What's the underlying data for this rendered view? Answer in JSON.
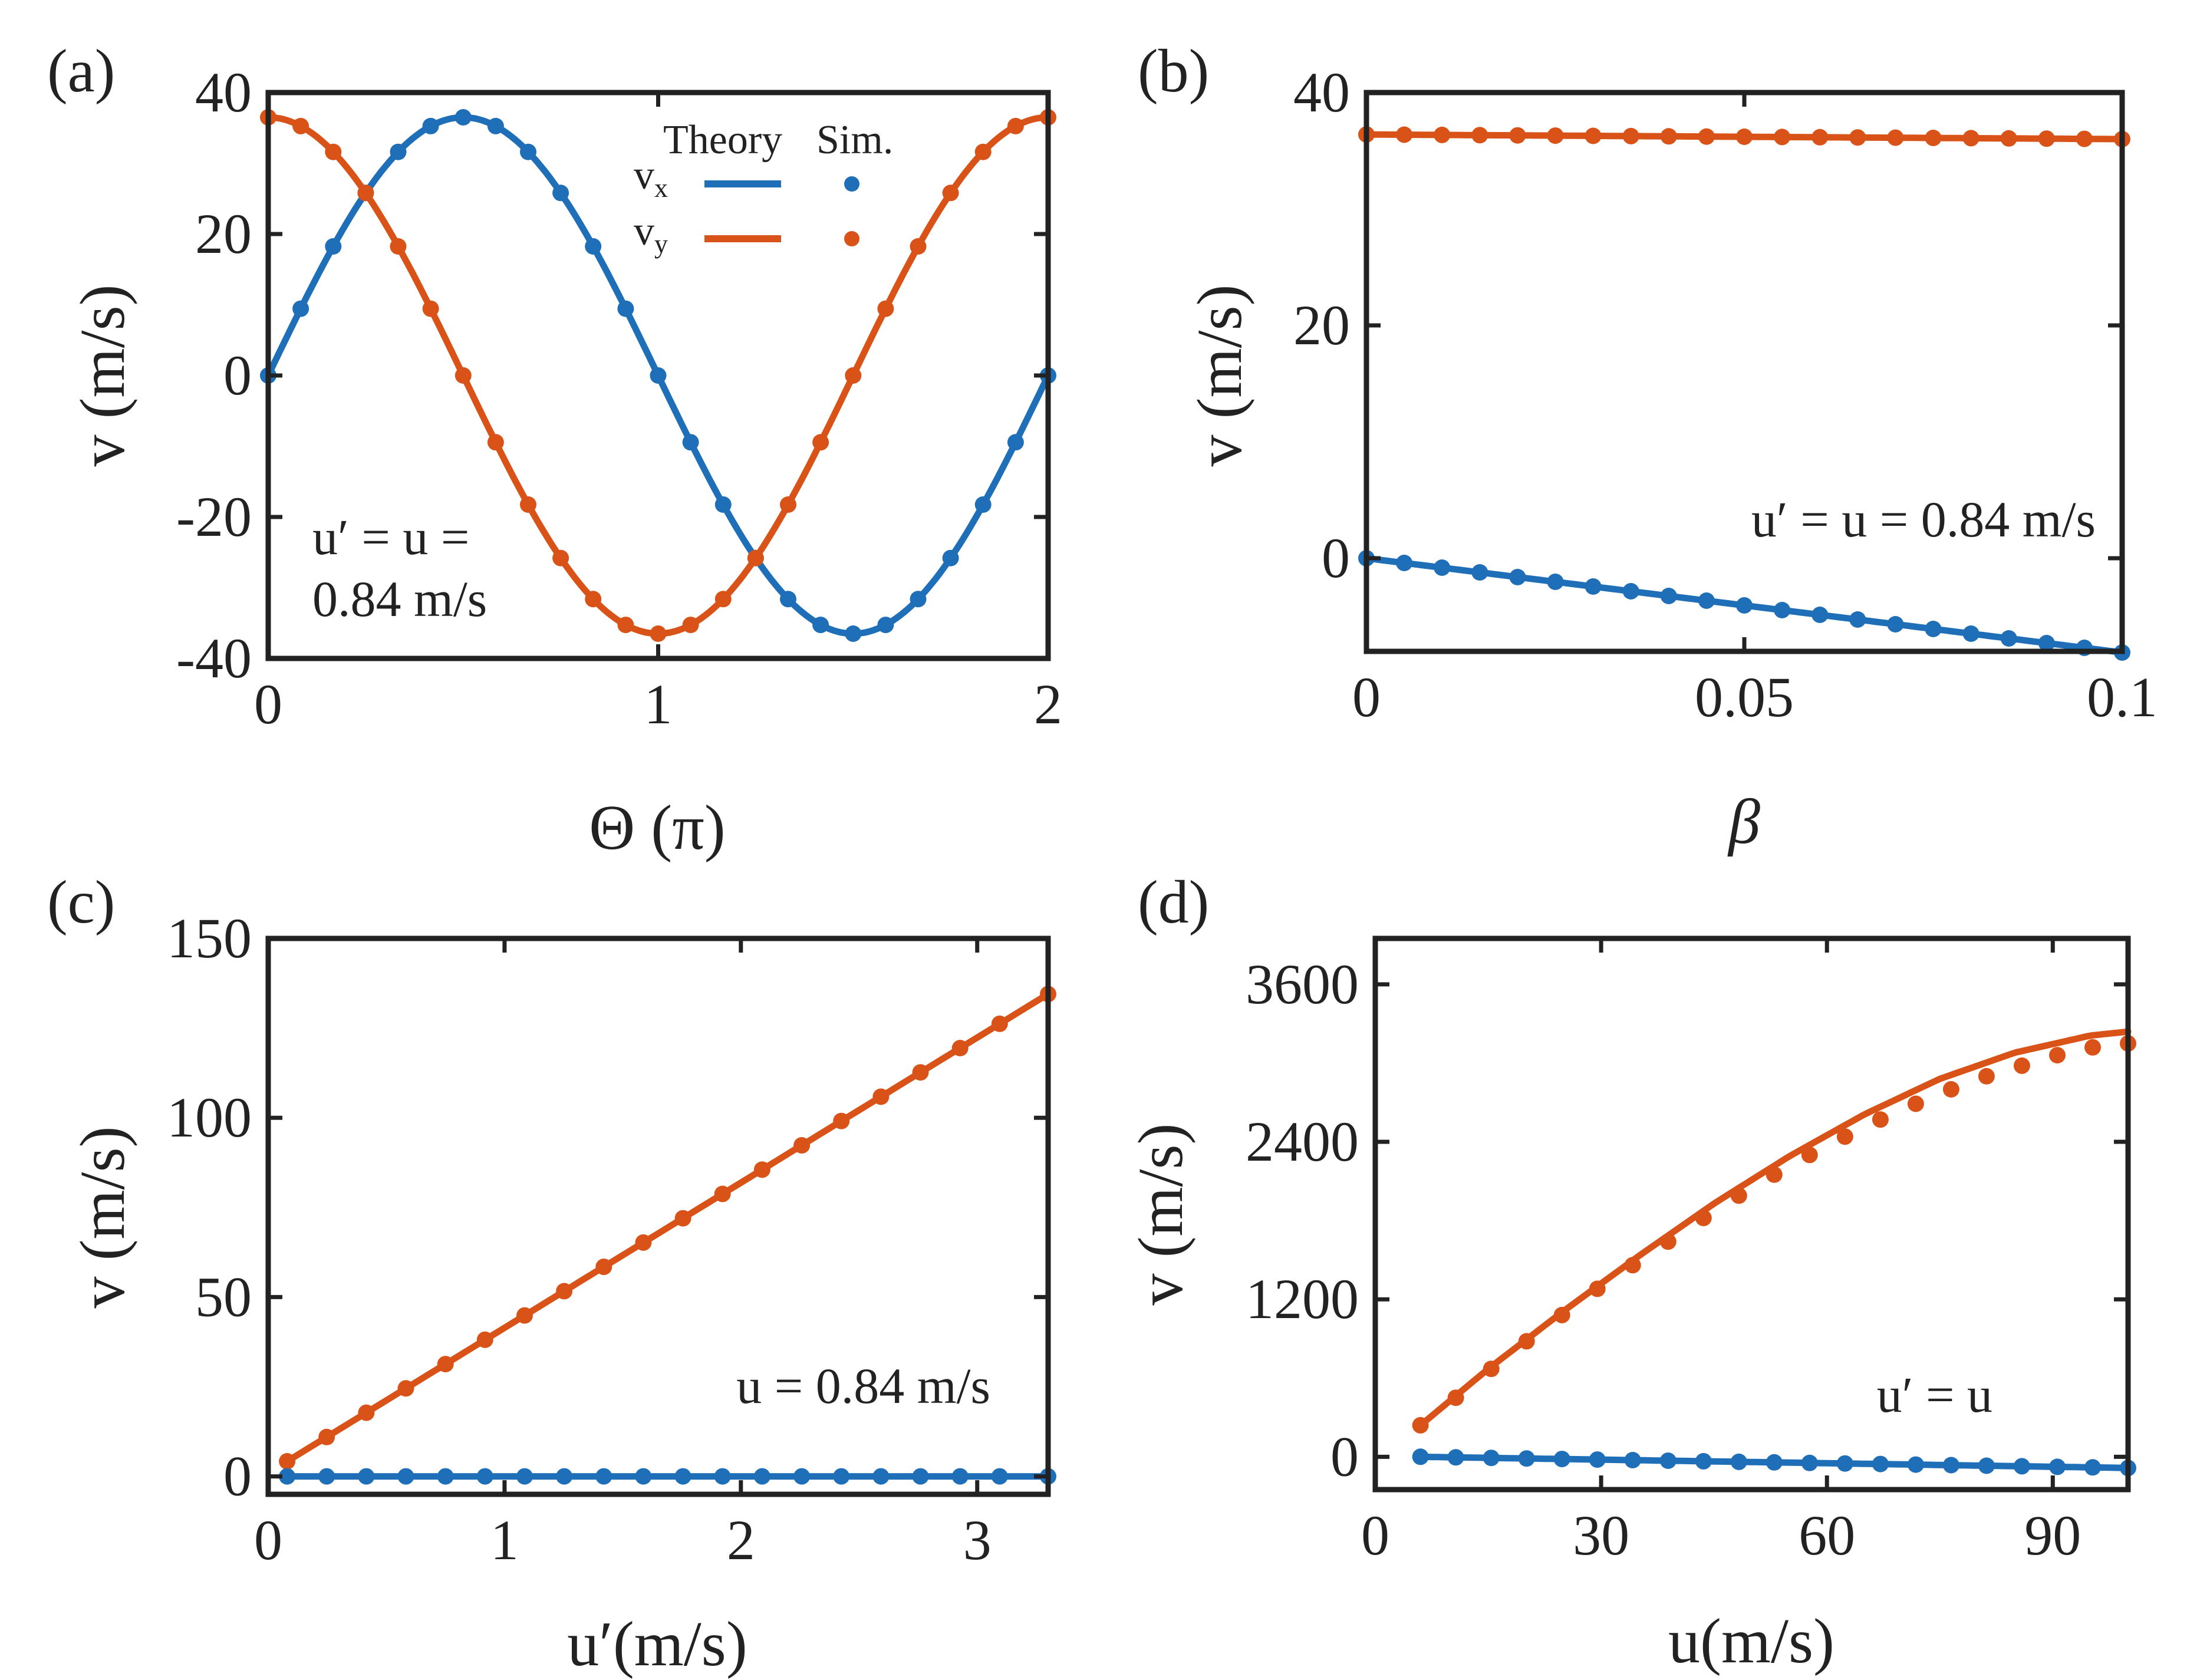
{
  "colors": {
    "vx": "#1f6fb8",
    "vy": "#d95319",
    "axis": "#222222"
  },
  "chart_data": [
    {
      "id": "a",
      "type": "line",
      "panel_label": "(a)",
      "xlabel": "Θ (π)",
      "ylabel": "v (m/s)",
      "xlim": [
        0,
        2
      ],
      "ylim": [
        -40,
        40
      ],
      "xticks": [
        0,
        1,
        2
      ],
      "yticks": [
        40,
        20,
        0,
        -20,
        -40
      ],
      "annotation": [
        "u′ = u =",
        "0.84 m/s"
      ],
      "legend": {
        "header_theory": "Theory",
        "header_sim": "Sim.",
        "vx": "v",
        "vx_sub": "x",
        "vy": "v",
        "vy_sub": "y",
        "placement": "top-center"
      },
      "series": [
        {
          "name": "vx",
          "amplitude": 36.5,
          "function": "36.5*sin(pi*x)"
        },
        {
          "name": "vy",
          "amplitude": 36.5,
          "function": "36.5*cos(pi*x)"
        }
      ],
      "sim_x": [
        0,
        0.0833,
        0.1667,
        0.25,
        0.3333,
        0.4167,
        0.5,
        0.5833,
        0.6667,
        0.75,
        0.8333,
        0.9167,
        1.0,
        1.0833,
        1.1667,
        1.25,
        1.3333,
        1.4167,
        1.5,
        1.5833,
        1.6667,
        1.75,
        1.8333,
        1.9167,
        2.0
      ]
    },
    {
      "id": "b",
      "type": "line",
      "panel_label": "(b)",
      "xlabel": "β",
      "ylabel": "v (m/s)",
      "xlim": [
        0,
        0.1
      ],
      "ylim": [
        -8,
        40
      ],
      "xticks": [
        0,
        0.05,
        0.1
      ],
      "xtick_labels": [
        "0",
        "0.05",
        "0.1"
      ],
      "yticks": [
        40,
        20,
        0
      ],
      "annotation": [
        "u′ = u = 0.84 m/s"
      ],
      "series": [
        {
          "name": "vy",
          "x": [
            0,
            0.1
          ],
          "y": [
            36.4,
            36.0
          ]
        },
        {
          "name": "vx",
          "x": [
            0,
            0.1
          ],
          "y": [
            0,
            -8.1
          ]
        }
      ],
      "sim_x": [
        0,
        0.005,
        0.01,
        0.015,
        0.02,
        0.025,
        0.03,
        0.035,
        0.04,
        0.045,
        0.05,
        0.055,
        0.06,
        0.065,
        0.07,
        0.075,
        0.08,
        0.085,
        0.09,
        0.095,
        0.1
      ]
    },
    {
      "id": "c",
      "type": "line",
      "panel_label": "(c)",
      "xlabel": "u′(m/s)",
      "ylabel": "v (m/s)",
      "xlim": [
        0,
        3.3
      ],
      "ylim": [
        -5,
        150
      ],
      "xticks": [
        0,
        1,
        2,
        3
      ],
      "yticks": [
        150,
        100,
        50,
        0
      ],
      "annotation": [
        "u = 0.84 m/s"
      ],
      "series": [
        {
          "name": "vy",
          "x": [
            0.08,
            3.3
          ],
          "y": [
            4.2,
            134.5
          ]
        },
        {
          "name": "vx",
          "x": [
            0.08,
            3.3
          ],
          "y": [
            0,
            0
          ]
        }
      ],
      "sim_x": [
        0.08,
        0.2475,
        0.415,
        0.5825,
        0.75,
        0.9175,
        1.085,
        1.2525,
        1.42,
        1.5875,
        1.755,
        1.9225,
        2.09,
        2.2575,
        2.425,
        2.5925,
        2.76,
        2.9275,
        3.095,
        3.3
      ]
    },
    {
      "id": "d",
      "type": "line",
      "panel_label": "(d)",
      "xlabel": "u(m/s)",
      "ylabel": "v (m/s)",
      "xlim": [
        0,
        100
      ],
      "ylim": [
        -250,
        3950
      ],
      "xticks": [
        0,
        30,
        60,
        90
      ],
      "yticks": [
        3600,
        2400,
        1200,
        0
      ],
      "annotation": [
        "u′ = u"
      ],
      "series": [
        {
          "name": "vy",
          "x": [
            6,
            15,
            25,
            35,
            45,
            55,
            65,
            75,
            85,
            95,
            100
          ],
          "y": [
            240,
            670,
            1110,
            1530,
            1930,
            2290,
            2610,
            2880,
            3080,
            3210,
            3240
          ]
        },
        {
          "name": "vx",
          "x": [
            6,
            100
          ],
          "y": [
            0,
            -85
          ]
        }
      ],
      "sim_vy": {
        "x": [
          6,
          10.7,
          15.4,
          20.1,
          24.8,
          29.5,
          34.2,
          38.9,
          43.6,
          48.3,
          53,
          57.7,
          62.4,
          67.1,
          71.8,
          76.5,
          81.2,
          85.9,
          90.6,
          95.3,
          100
        ],
        "y": [
          240,
          450,
          670,
          880,
          1080,
          1280,
          1460,
          1640,
          1820,
          1990,
          2150,
          2300,
          2440,
          2570,
          2690,
          2800,
          2900,
          2980,
          3060,
          3120,
          3150
        ]
      },
      "sim_vx_x": [
        6,
        10.7,
        15.4,
        20.1,
        24.8,
        29.5,
        34.2,
        38.9,
        43.6,
        48.3,
        53,
        57.7,
        62.4,
        67.1,
        71.8,
        76.5,
        81.2,
        85.9,
        90.6,
        95.3,
        100
      ]
    }
  ]
}
